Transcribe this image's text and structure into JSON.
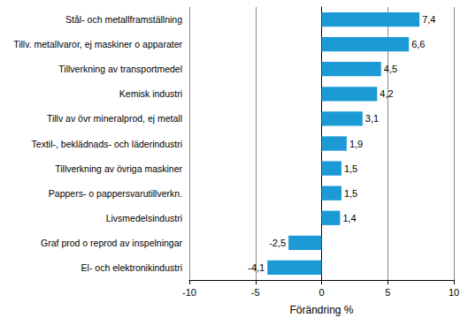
{
  "chart_data": {
    "type": "bar",
    "orientation": "horizontal",
    "x_label": "Förändring %",
    "categories": [
      "Stål- och metallframställning",
      "Tillv. metallvaror, ej maskiner o apparater",
      "Tillverkning av transportmedel",
      "Kemisk industri",
      "Tillv av övr mineralprod, ej metall",
      "Textil-, beklädnads- och läderindustri",
      "Tillverkning av övriga maskiner",
      "Pappers- o pappersvarutillverkn.",
      "Livsmedelsindustri",
      "Graf prod o reprod av inspelningar",
      "El- och elektronikindustri"
    ],
    "values": [
      7.4,
      6.6,
      4.5,
      4.2,
      3.1,
      1.9,
      1.5,
      1.5,
      1.4,
      -2.5,
      -4.1
    ],
    "value_labels": [
      "7,4",
      "6,6",
      "4,5",
      "4,2",
      "3,1",
      "1,9",
      "1,5",
      "1,5",
      "1,4",
      "-2,5",
      "-4,1"
    ],
    "color": "#1b9ad6",
    "xlim": [
      -10,
      10
    ],
    "xticks": [
      -10,
      -5,
      0,
      5,
      10
    ],
    "grid": true,
    "data_labels": true
  }
}
